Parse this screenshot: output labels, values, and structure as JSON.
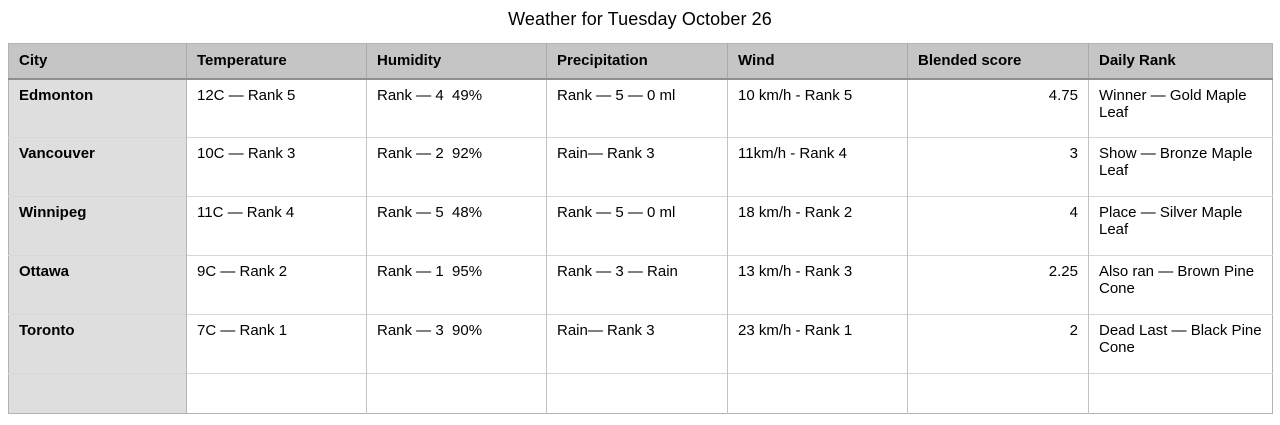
{
  "title": "Weather for Tuesday October 26",
  "table": {
    "columns": [
      "City",
      "Temperature",
      "Humidity",
      "Precipitation",
      "Wind",
      "Blended score",
      "Daily Rank"
    ],
    "rows": [
      {
        "city": "Edmonton",
        "temperature": "12C — Rank 5",
        "humidity": "Rank — 4  49%",
        "precipitation": "Rank — 5 — 0 ml",
        "wind": "10 km/h - Rank 5",
        "blended_score": "4.75",
        "daily_rank": "Winner — Gold Maple Leaf"
      },
      {
        "city": "Vancouver",
        "temperature": "10C — Rank 3",
        "humidity": "Rank — 2  92%",
        "precipitation": "Rain— Rank 3",
        "wind": "11km/h - Rank 4",
        "blended_score": "3",
        "daily_rank": "Show — Bronze Maple Leaf"
      },
      {
        "city": "Winnipeg",
        "temperature": "11C — Rank 4",
        "humidity": "Rank — 5  48%",
        "precipitation": "Rank — 5 — 0 ml",
        "wind": "18 km/h - Rank 2",
        "blended_score": "4",
        "daily_rank": "Place — Silver Maple Leaf"
      },
      {
        "city": "Ottawa",
        "temperature": "9C — Rank 2",
        "humidity": "Rank — 1  95%",
        "precipitation": "Rank — 3 — Rain",
        "wind": "13 km/h - Rank 3",
        "blended_score": "2.25",
        "daily_rank": "Also ran — Brown Pine Cone"
      },
      {
        "city": "Toronto",
        "temperature": "7C — Rank 1",
        "humidity": "Rank — 3  90%",
        "precipitation": "Rain— Rank 3",
        "wind": "23 km/h - Rank 1",
        "blended_score": "2",
        "daily_rank": "Dead Last — Black Pine Cone"
      },
      {
        "city": "",
        "temperature": "",
        "humidity": "",
        "precipitation": "",
        "wind": "",
        "blended_score": "",
        "daily_rank": ""
      }
    ],
    "colors": {
      "header_bg": "#c5c5c5",
      "city_column_bg": "#dedede",
      "header_border": "#8f8f8f",
      "grid_border": "#c2c2c2"
    }
  }
}
